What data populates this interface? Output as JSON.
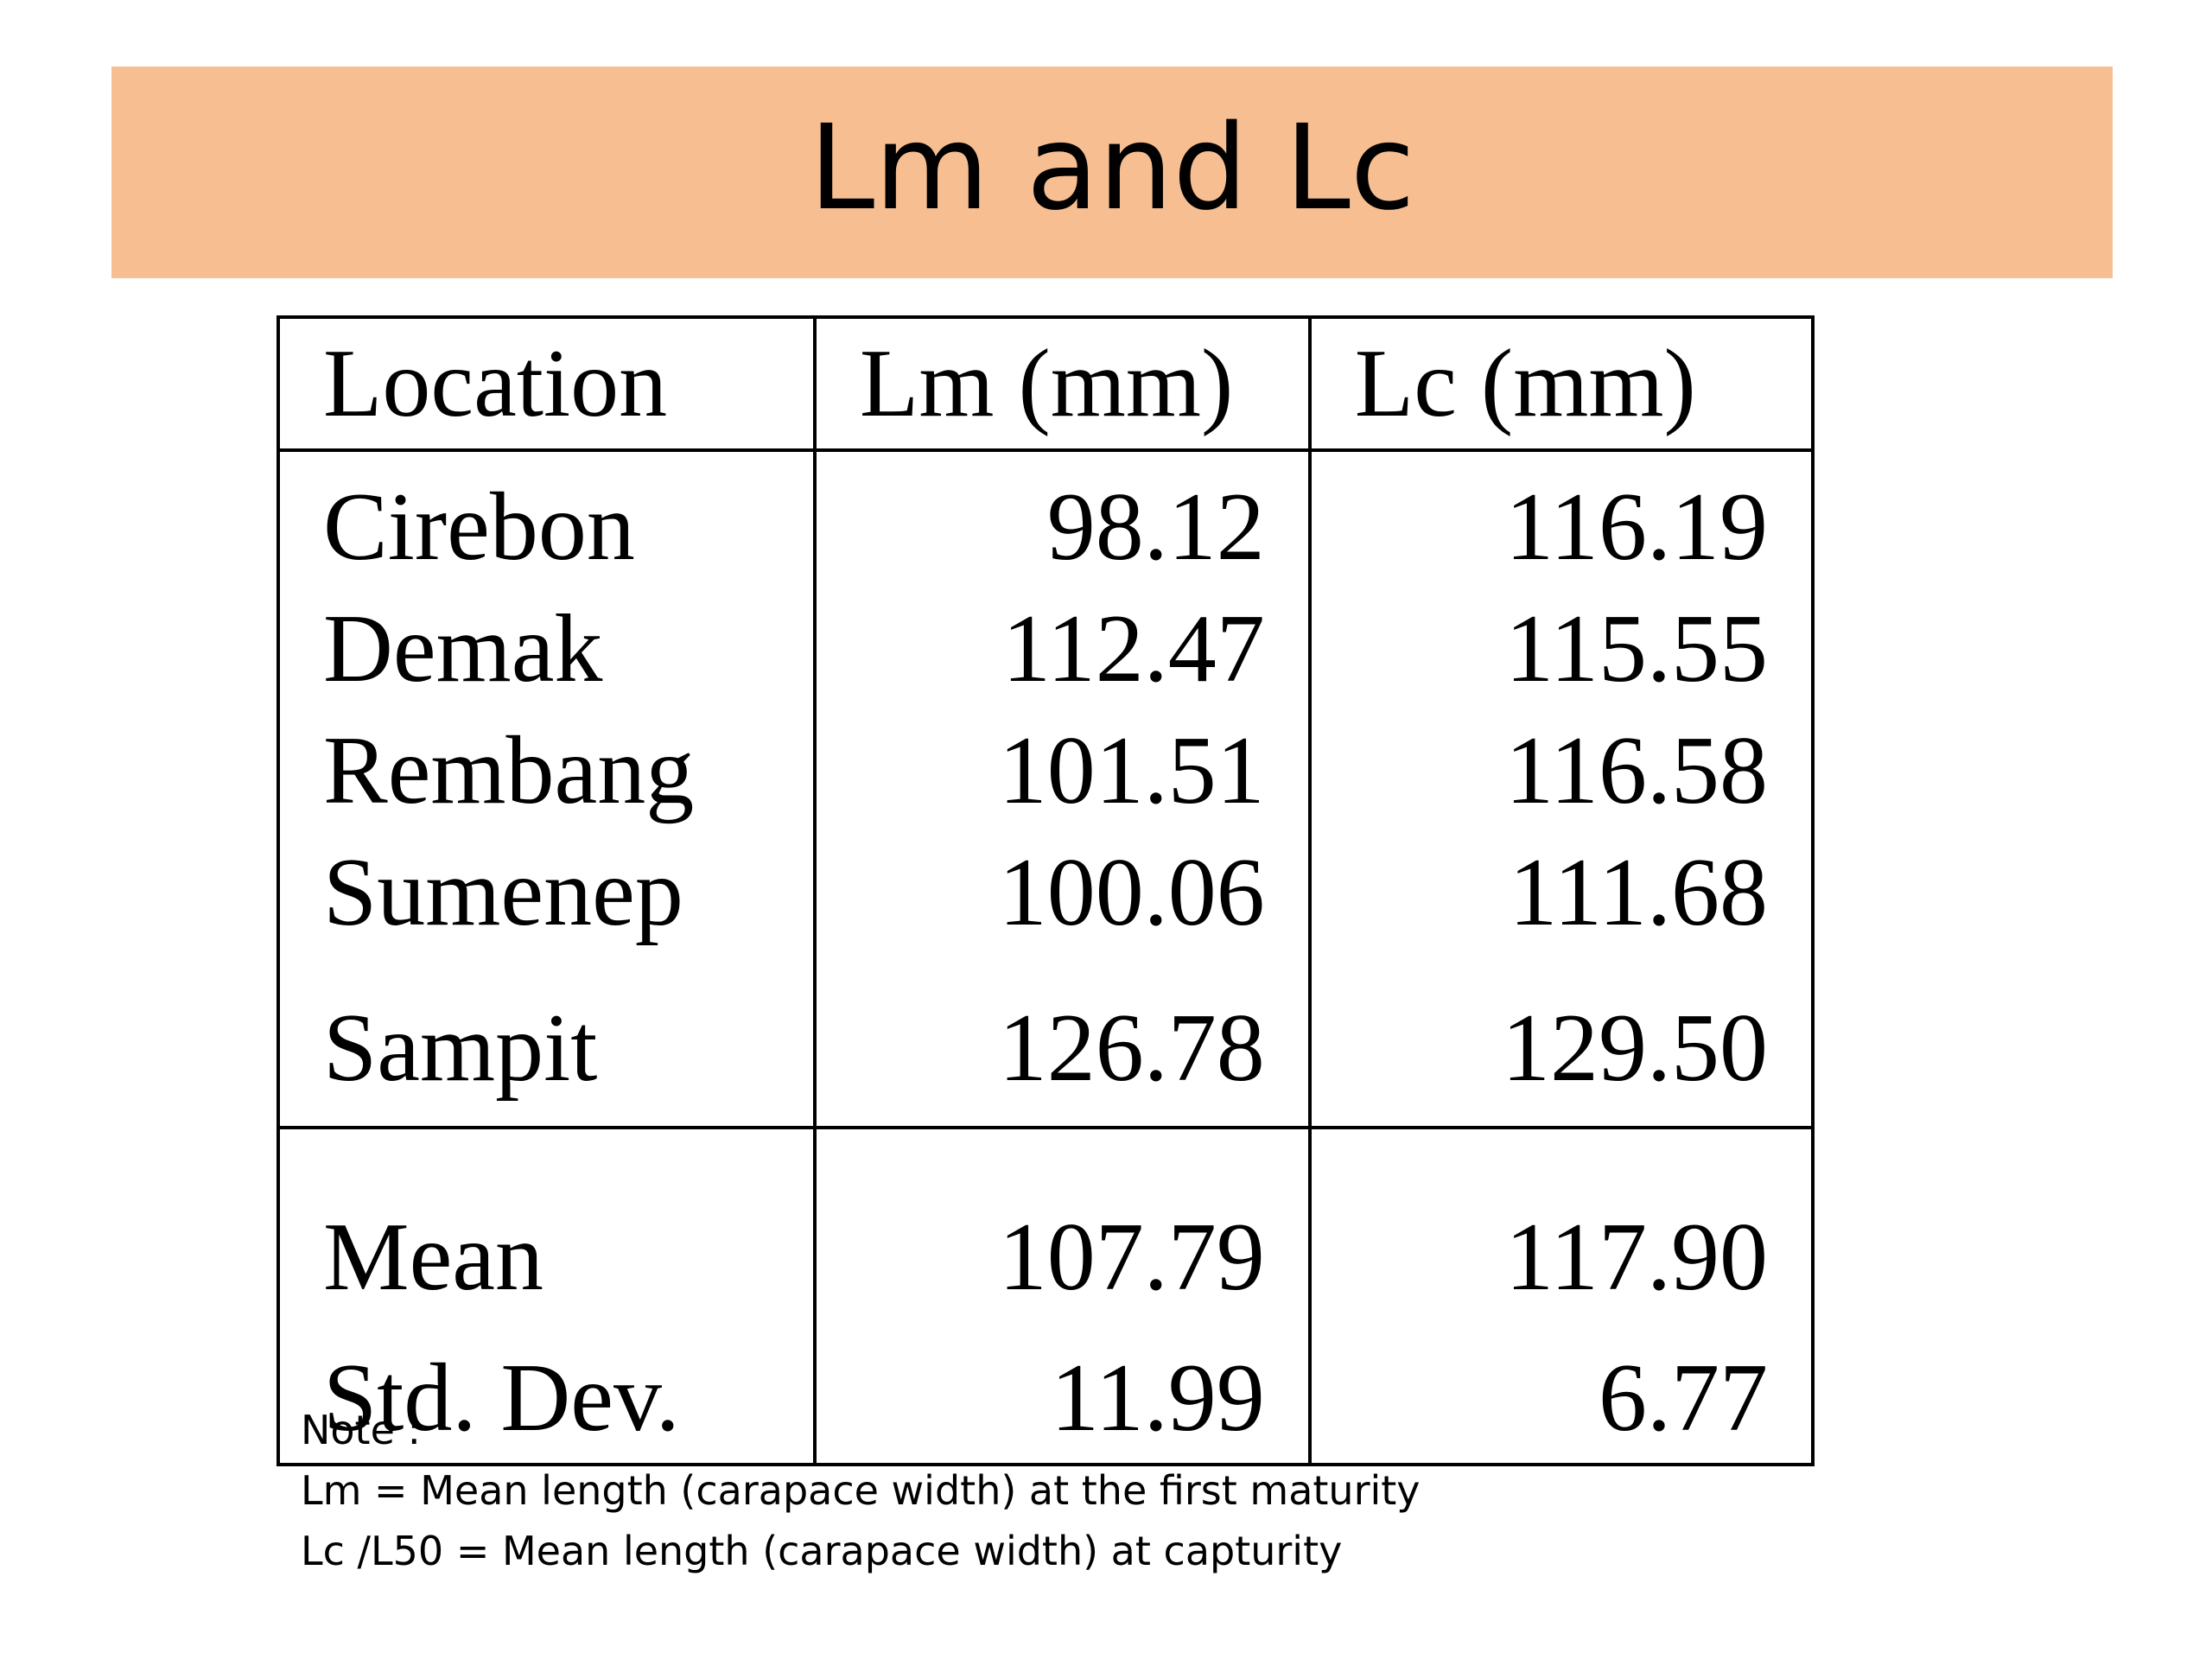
{
  "title": "Lm and Lc",
  "table": {
    "headers": [
      "Location",
      "Lm (mm)",
      "Lc (mm)"
    ],
    "rows": [
      {
        "location": "Cirebon",
        "lm": "98.12",
        "lc": "116.19"
      },
      {
        "location": "Demak",
        "lm": "112.47",
        "lc": "115.55"
      },
      {
        "location": "Rembang",
        "lm": "101.51",
        "lc": "116.58"
      },
      {
        "location": "Sumenep",
        "lm": "100.06",
        "lc": "111.68"
      },
      {
        "location": "Sampit",
        "lm": "126.78",
        "lc": "129.50"
      }
    ],
    "summary": [
      {
        "label": "Mean",
        "lm": "107.79",
        "lc": "117.90"
      },
      {
        "label": "Std. Dev.",
        "lm": "11.99",
        "lc": "6.77"
      }
    ]
  },
  "note": {
    "heading": "Note :",
    "lines": [
      "Lm = Mean length (carapace width) at the first maturity",
      "Lc /L50 = Mean length (carapace width) at capturity"
    ]
  },
  "colors": {
    "title_band": "#f7be91"
  }
}
